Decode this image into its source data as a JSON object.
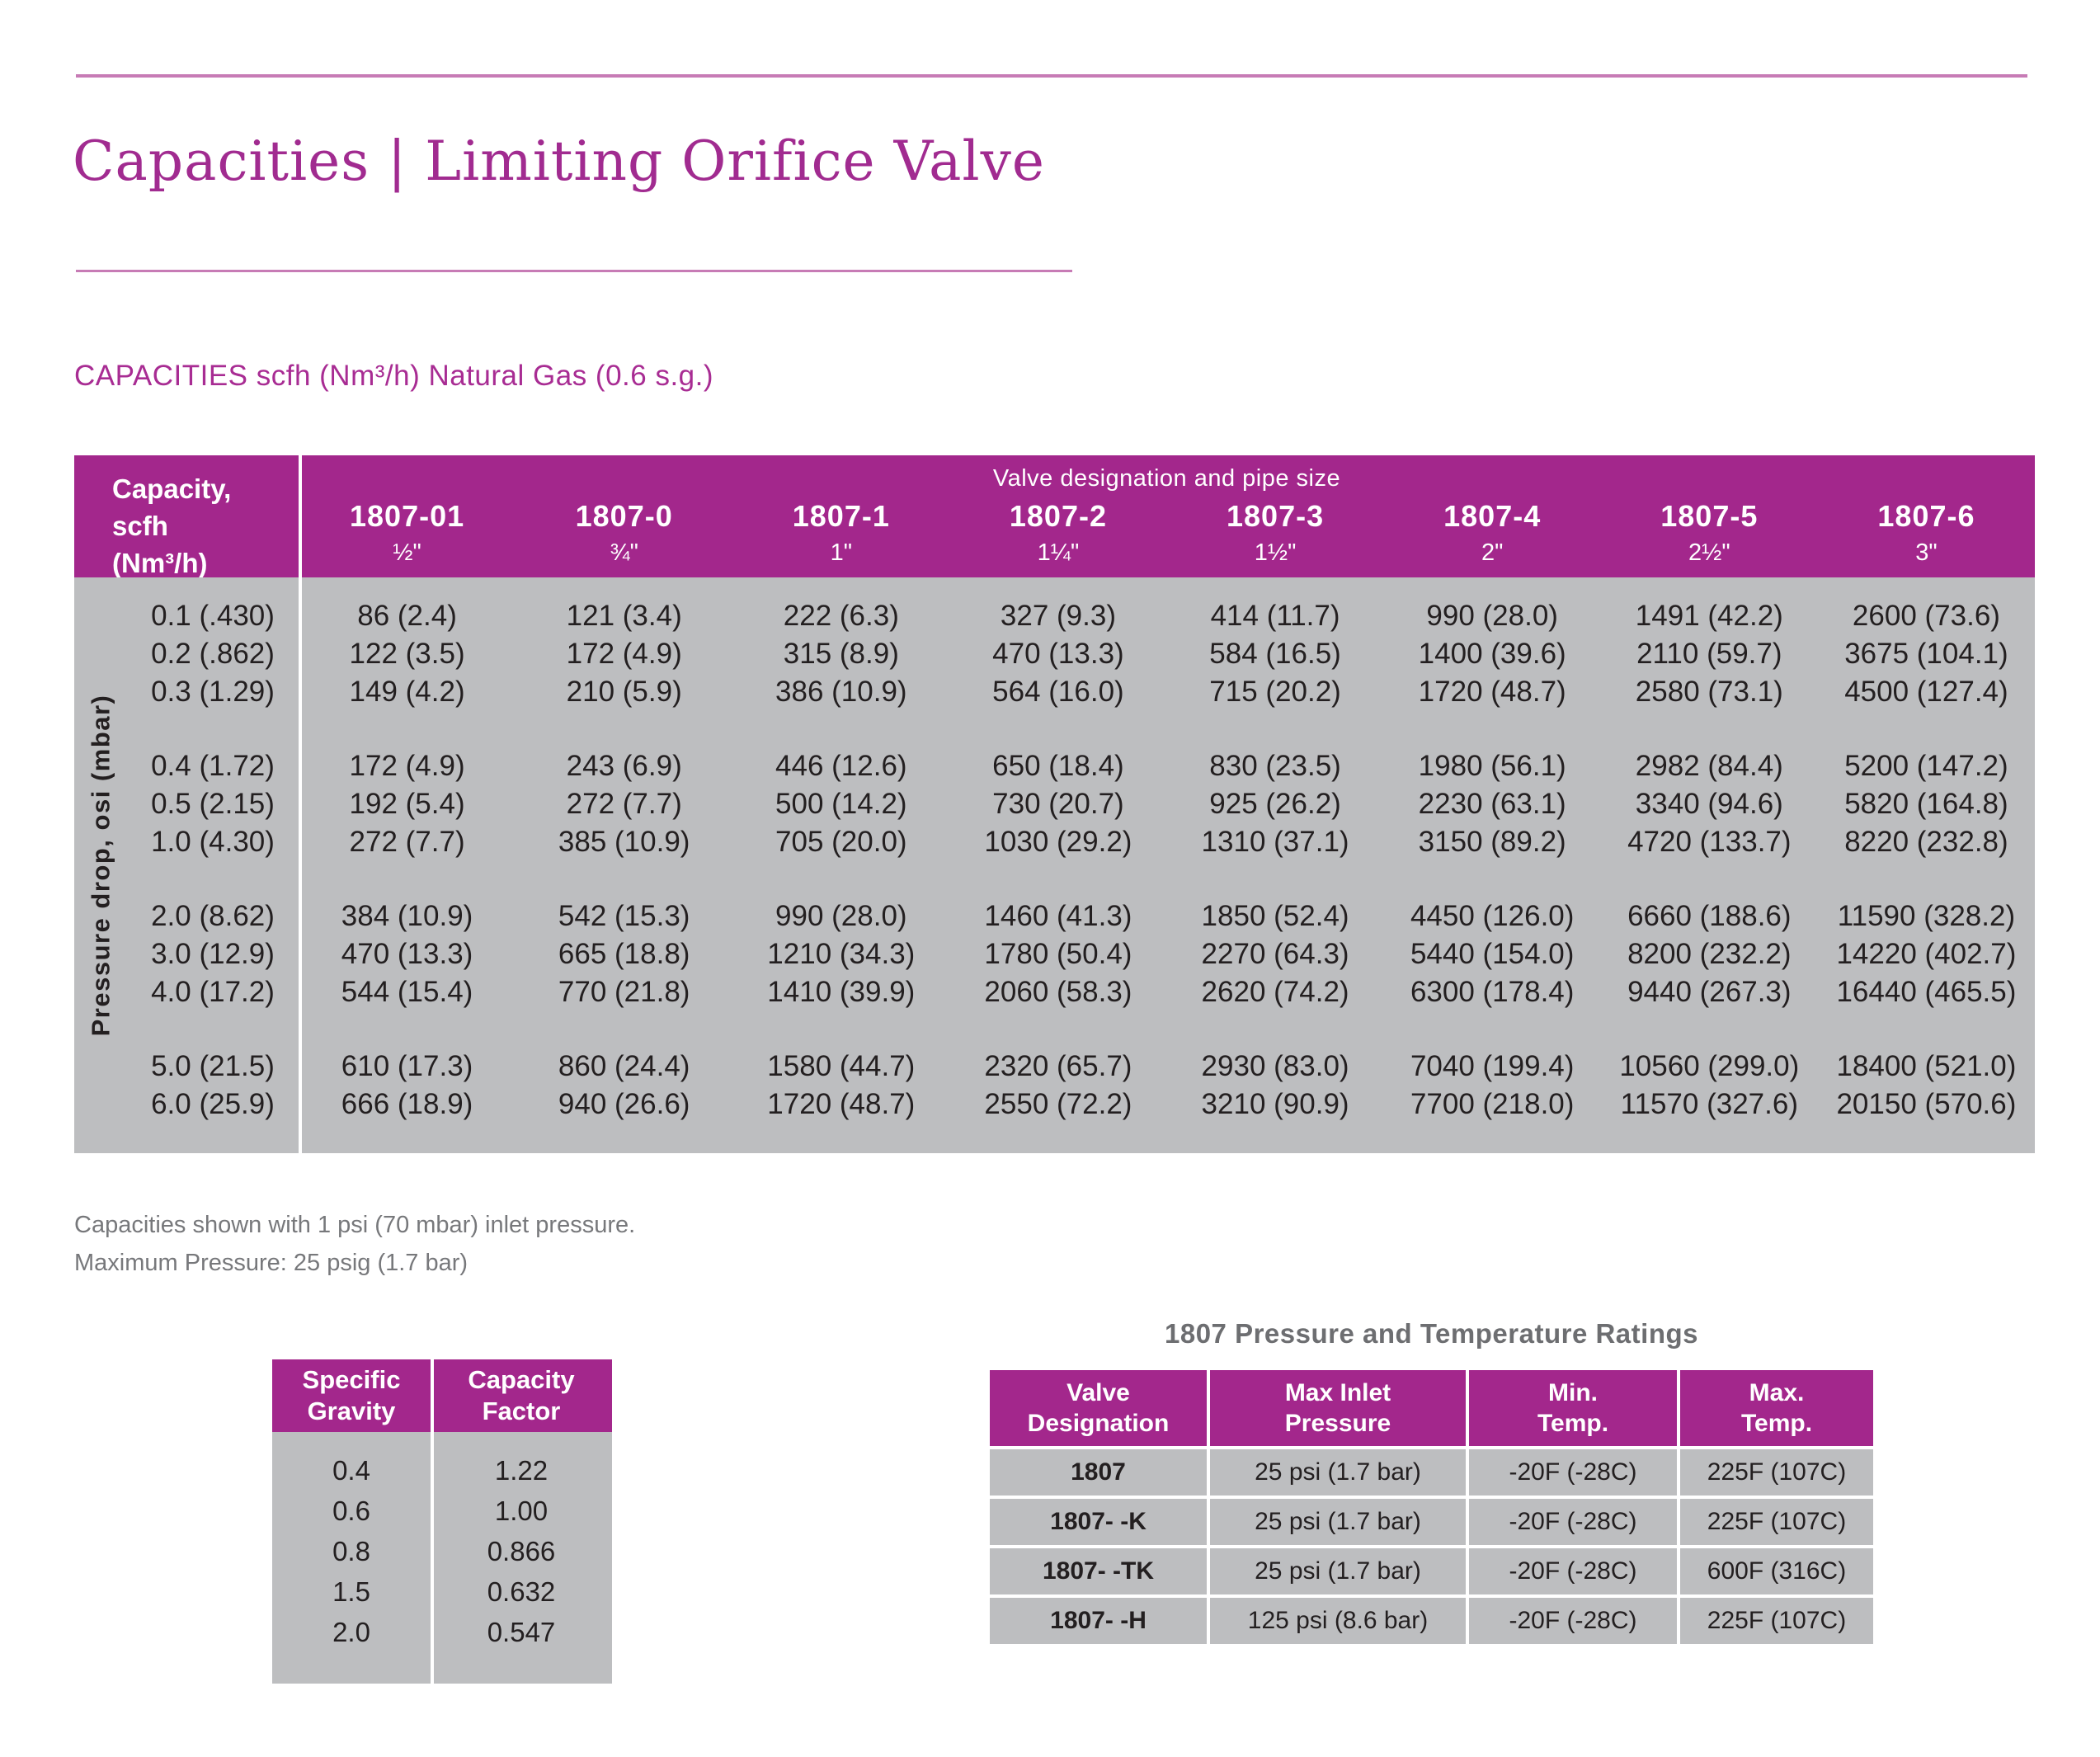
{
  "page": {
    "title": "Capacities | Limiting Orifice Valve",
    "subtitle": "CAPACITIES scfh (Nm³/h) Natural Gas (0.6 s.g.)",
    "notes": [
      "Capacities shown with 1 psi (70 mbar) inlet pressure.",
      "Maximum Pressure: 25 psig (1.7 bar)"
    ]
  },
  "colors": {
    "accent_magenta": "#A3278C",
    "title_magenta": "#A12B90",
    "body_gray": "#BDBEC0",
    "rule_pink": "#C77BB5",
    "text_dark": "#231F20",
    "note_gray": "#77787B",
    "ratings_title_gray": "#6D6E71"
  },
  "capacity_table": {
    "corner_lines": [
      "Capacity,",
      "scfh",
      "(Nm³/h)"
    ],
    "span_header": "Valve designation and pipe size",
    "row_axis_label": "Pressure drop, osi (mbar)",
    "columns": [
      {
        "designation": "1807-01",
        "pipe_size": "½\""
      },
      {
        "designation": "1807-0",
        "pipe_size": "¾\""
      },
      {
        "designation": "1807-1",
        "pipe_size": "1\""
      },
      {
        "designation": "1807-2",
        "pipe_size": "1¼\""
      },
      {
        "designation": "1807-3",
        "pipe_size": "1½\""
      },
      {
        "designation": "1807-4",
        "pipe_size": "2\""
      },
      {
        "designation": "1807-5",
        "pipe_size": "2½\""
      },
      {
        "designation": "1807-6",
        "pipe_size": "3\""
      }
    ],
    "row_groups": [
      {
        "rows": [
          {
            "pressure_drop": "0.1 (.430)",
            "values": [
              "86 (2.4)",
              "121 (3.4)",
              "222 (6.3)",
              "327 (9.3)",
              "414 (11.7)",
              "990 (28.0)",
              "1491 (42.2)",
              "2600 (73.6)"
            ]
          },
          {
            "pressure_drop": "0.2 (.862)",
            "values": [
              "122 (3.5)",
              "172 (4.9)",
              "315 (8.9)",
              "470 (13.3)",
              "584 (16.5)",
              "1400 (39.6)",
              "2110 (59.7)",
              "3675 (104.1)"
            ]
          },
          {
            "pressure_drop": "0.3 (1.29)",
            "values": [
              "149 (4.2)",
              "210 (5.9)",
              "386 (10.9)",
              "564 (16.0)",
              "715 (20.2)",
              "1720 (48.7)",
              "2580 (73.1)",
              "4500 (127.4)"
            ]
          }
        ]
      },
      {
        "rows": [
          {
            "pressure_drop": "0.4 (1.72)",
            "values": [
              "172 (4.9)",
              "243 (6.9)",
              "446 (12.6)",
              "650 (18.4)",
              "830 (23.5)",
              "1980 (56.1)",
              "2982 (84.4)",
              "5200 (147.2)"
            ]
          },
          {
            "pressure_drop": "0.5 (2.15)",
            "values": [
              "192 (5.4)",
              "272 (7.7)",
              "500 (14.2)",
              "730 (20.7)",
              "925 (26.2)",
              "2230 (63.1)",
              "3340 (94.6)",
              "5820 (164.8)"
            ]
          },
          {
            "pressure_drop": "1.0 (4.30)",
            "values": [
              "272 (7.7)",
              "385 (10.9)",
              "705 (20.0)",
              "1030 (29.2)",
              "1310 (37.1)",
              "3150 (89.2)",
              "4720 (133.7)",
              "8220 (232.8)"
            ]
          }
        ]
      },
      {
        "rows": [
          {
            "pressure_drop": "2.0 (8.62)",
            "values": [
              "384 (10.9)",
              "542 (15.3)",
              "990 (28.0)",
              "1460 (41.3)",
              "1850 (52.4)",
              "4450 (126.0)",
              "6660 (188.6)",
              "11590 (328.2)"
            ]
          },
          {
            "pressure_drop": "3.0 (12.9)",
            "values": [
              "470 (13.3)",
              "665 (18.8)",
              "1210 (34.3)",
              "1780 (50.4)",
              "2270 (64.3)",
              "5440 (154.0)",
              "8200 (232.2)",
              "14220 (402.7)"
            ]
          },
          {
            "pressure_drop": "4.0 (17.2)",
            "values": [
              "544 (15.4)",
              "770 (21.8)",
              "1410 (39.9)",
              "2060 (58.3)",
              "2620 (74.2)",
              "6300 (178.4)",
              "9440 (267.3)",
              "16440 (465.5)"
            ]
          }
        ]
      },
      {
        "rows": [
          {
            "pressure_drop": "5.0 (21.5)",
            "values": [
              "610 (17.3)",
              "860 (24.4)",
              "1580 (44.7)",
              "2320 (65.7)",
              "2930 (83.0)",
              "7040 (199.4)",
              "10560 (299.0)",
              "18400 (521.0)"
            ]
          },
          {
            "pressure_drop": "6.0 (25.9)",
            "values": [
              "666 (18.9)",
              "940 (26.6)",
              "1720 (48.7)",
              "2550 (72.2)",
              "3210 (90.9)",
              "7700 (218.0)",
              "11570 (327.6)",
              "20150 (570.6)"
            ]
          }
        ]
      }
    ]
  },
  "gravity_table": {
    "headers": [
      "Specific\nGravity",
      "Capacity\nFactor"
    ],
    "rows": [
      [
        "0.4",
        "1.22"
      ],
      [
        "0.6",
        "1.00"
      ],
      [
        "0.8",
        "0.866"
      ],
      [
        "1.5",
        "0.632"
      ],
      [
        "2.0",
        "0.547"
      ]
    ]
  },
  "ratings_table": {
    "title": "1807 Pressure and Temperature Ratings",
    "headers": [
      "Valve\nDesignation",
      "Max Inlet\nPressure",
      "Min.\nTemp.",
      "Max.\nTemp."
    ],
    "rows": [
      [
        "1807",
        "25 psi (1.7 bar)",
        "-20F (-28C)",
        "225F (107C)"
      ],
      [
        "1807- -K",
        "25 psi (1.7 bar)",
        "-20F (-28C)",
        "225F (107C)"
      ],
      [
        "1807- -TK",
        "25 psi (1.7 bar)",
        "-20F (-28C)",
        "600F (316C)"
      ],
      [
        "1807- -H",
        "125 psi (8.6 bar)",
        "-20F (-28C)",
        "225F (107C)"
      ]
    ]
  }
}
